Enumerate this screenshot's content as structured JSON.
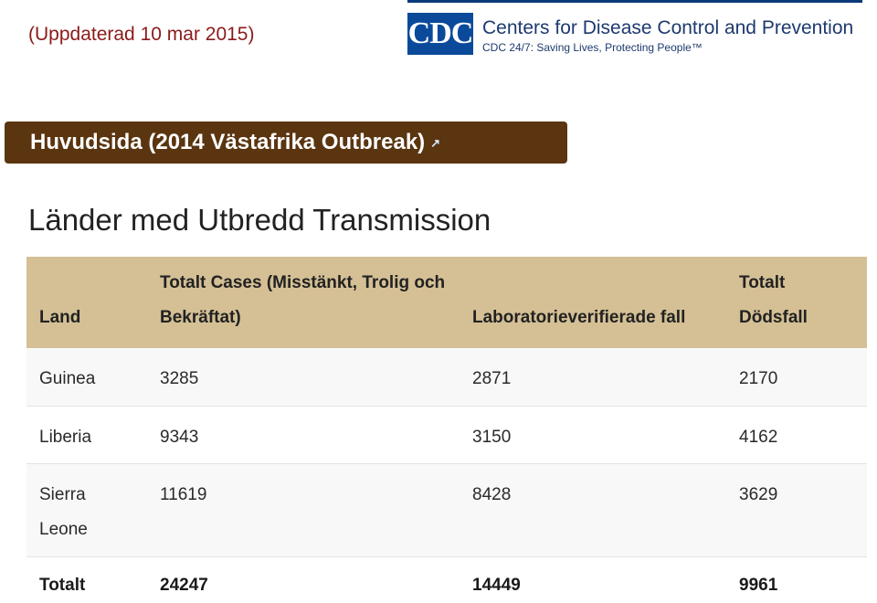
{
  "header": {
    "updated": "(Uppdaterad 10 mar 2015)",
    "logo_text": "CDC",
    "org_name": "Centers for Disease Control and Prevention",
    "tagline": "CDC 24/7: Saving Lives, Protecting People™"
  },
  "banner": {
    "label": "Huvudsida (2014 Västafrika Outbreak)",
    "icon": "external-link-icon"
  },
  "section": {
    "title": "Länder med Utbredd Transmission"
  },
  "table": {
    "headers": [
      "Land",
      "Totalt Cases (Misstänkt, Trolig och Bekräftat)",
      "Laboratorieverifierade fall",
      "Totalt Dödsfall"
    ],
    "rows": [
      [
        "Guinea",
        "3285",
        "2871",
        "2170"
      ],
      [
        "Liberia",
        "9343",
        "3150",
        "4162"
      ],
      [
        "Sierra Leone",
        "11619",
        "8428",
        "3629"
      ]
    ],
    "total": [
      "Totalt",
      "24247",
      "14449",
      "9961"
    ]
  }
}
